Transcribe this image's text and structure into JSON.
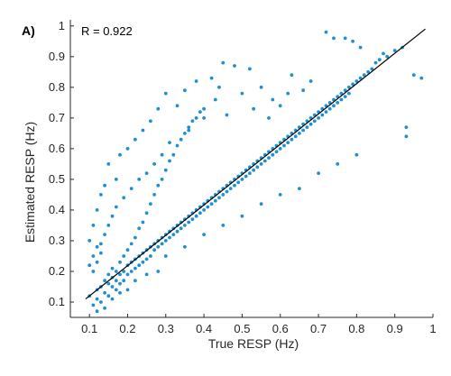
{
  "chart_data": {
    "type": "scatter",
    "panel_label": "A)",
    "annotation": "R = 0.922",
    "xlabel": "True RESP (Hz)",
    "ylabel": "Estimated RESP (Hz)",
    "xlim": [
      0.05,
      1.0
    ],
    "ylim": [
      0.05,
      1.02
    ],
    "x_ticks": [
      "0.1",
      "0.2",
      "0.3",
      "0.4",
      "0.5",
      "0.6",
      "0.7",
      "0.8",
      "0.9",
      "1"
    ],
    "y_ticks": [
      "0.1",
      "0.2",
      "0.3",
      "0.4",
      "0.5",
      "0.6",
      "0.7",
      "0.8",
      "0.9",
      "1"
    ],
    "x_tick_values": [
      0.1,
      0.2,
      0.3,
      0.4,
      0.5,
      0.6,
      0.7,
      0.8,
      0.9,
      1.0
    ],
    "y_tick_values": [
      0.1,
      0.2,
      0.3,
      0.4,
      0.5,
      0.6,
      0.7,
      0.8,
      0.9,
      1.0
    ],
    "grid": false,
    "box": "left-bottom",
    "point_color": "#1f8fd0",
    "line_color": "#000000",
    "fit_line": {
      "x": [
        0.09,
        0.98
      ],
      "y": [
        0.11,
        0.99
      ]
    },
    "points": [
      [
        0.1,
        0.12
      ],
      [
        0.11,
        0.09
      ],
      [
        0.12,
        0.14
      ],
      [
        0.12,
        0.11
      ],
      [
        0.13,
        0.15
      ],
      [
        0.13,
        0.1
      ],
      [
        0.14,
        0.17
      ],
      [
        0.14,
        0.13
      ],
      [
        0.15,
        0.16
      ],
      [
        0.15,
        0.19
      ],
      [
        0.15,
        0.12
      ],
      [
        0.16,
        0.18
      ],
      [
        0.16,
        0.15
      ],
      [
        0.16,
        0.21
      ],
      [
        0.17,
        0.17
      ],
      [
        0.17,
        0.2
      ],
      [
        0.17,
        0.14
      ],
      [
        0.18,
        0.19
      ],
      [
        0.18,
        0.23
      ],
      [
        0.18,
        0.16
      ],
      [
        0.19,
        0.2
      ],
      [
        0.19,
        0.25
      ],
      [
        0.19,
        0.17
      ],
      [
        0.2,
        0.22
      ],
      [
        0.2,
        0.19
      ],
      [
        0.2,
        0.27
      ],
      [
        0.21,
        0.23
      ],
      [
        0.21,
        0.2
      ],
      [
        0.21,
        0.29
      ],
      [
        0.22,
        0.24
      ],
      [
        0.22,
        0.21
      ],
      [
        0.22,
        0.31
      ],
      [
        0.23,
        0.25
      ],
      [
        0.23,
        0.22
      ],
      [
        0.23,
        0.34
      ],
      [
        0.24,
        0.26
      ],
      [
        0.24,
        0.23
      ],
      [
        0.24,
        0.36
      ],
      [
        0.25,
        0.27
      ],
      [
        0.25,
        0.24
      ],
      [
        0.25,
        0.39
      ],
      [
        0.26,
        0.28
      ],
      [
        0.26,
        0.25
      ],
      [
        0.26,
        0.42
      ],
      [
        0.27,
        0.29
      ],
      [
        0.27,
        0.27
      ],
      [
        0.27,
        0.45
      ],
      [
        0.28,
        0.3
      ],
      [
        0.28,
        0.28
      ],
      [
        0.28,
        0.48
      ],
      [
        0.29,
        0.31
      ],
      [
        0.29,
        0.29
      ],
      [
        0.29,
        0.5
      ],
      [
        0.3,
        0.32
      ],
      [
        0.3,
        0.3
      ],
      [
        0.3,
        0.53
      ],
      [
        0.31,
        0.33
      ],
      [
        0.31,
        0.31
      ],
      [
        0.31,
        0.56
      ],
      [
        0.32,
        0.34
      ],
      [
        0.32,
        0.32
      ],
      [
        0.32,
        0.58
      ],
      [
        0.33,
        0.35
      ],
      [
        0.33,
        0.33
      ],
      [
        0.33,
        0.61
      ],
      [
        0.34,
        0.36
      ],
      [
        0.34,
        0.34
      ],
      [
        0.34,
        0.63
      ],
      [
        0.35,
        0.37
      ],
      [
        0.35,
        0.35
      ],
      [
        0.35,
        0.65
      ],
      [
        0.36,
        0.38
      ],
      [
        0.36,
        0.36
      ],
      [
        0.36,
        0.67
      ],
      [
        0.37,
        0.39
      ],
      [
        0.37,
        0.37
      ],
      [
        0.37,
        0.69
      ],
      [
        0.38,
        0.4
      ],
      [
        0.38,
        0.38
      ],
      [
        0.38,
        0.7
      ],
      [
        0.39,
        0.41
      ],
      [
        0.39,
        0.39
      ],
      [
        0.39,
        0.72
      ],
      [
        0.4,
        0.42
      ],
      [
        0.4,
        0.4
      ],
      [
        0.4,
        0.73
      ],
      [
        0.41,
        0.43
      ],
      [
        0.41,
        0.41
      ],
      [
        0.42,
        0.44
      ],
      [
        0.42,
        0.42
      ],
      [
        0.43,
        0.45
      ],
      [
        0.43,
        0.43
      ],
      [
        0.44,
        0.46
      ],
      [
        0.44,
        0.44
      ],
      [
        0.45,
        0.47
      ],
      [
        0.45,
        0.45
      ],
      [
        0.46,
        0.48
      ],
      [
        0.46,
        0.46
      ],
      [
        0.47,
        0.49
      ],
      [
        0.47,
        0.47
      ],
      [
        0.48,
        0.5
      ],
      [
        0.48,
        0.48
      ],
      [
        0.49,
        0.51
      ],
      [
        0.49,
        0.49
      ],
      [
        0.5,
        0.52
      ],
      [
        0.5,
        0.5
      ],
      [
        0.51,
        0.53
      ],
      [
        0.51,
        0.51
      ],
      [
        0.52,
        0.54
      ],
      [
        0.52,
        0.52
      ],
      [
        0.53,
        0.55
      ],
      [
        0.53,
        0.53
      ],
      [
        0.54,
        0.56
      ],
      [
        0.54,
        0.54
      ],
      [
        0.55,
        0.57
      ],
      [
        0.55,
        0.55
      ],
      [
        0.56,
        0.58
      ],
      [
        0.56,
        0.56
      ],
      [
        0.57,
        0.59
      ],
      [
        0.57,
        0.57
      ],
      [
        0.58,
        0.6
      ],
      [
        0.58,
        0.58
      ],
      [
        0.59,
        0.61
      ],
      [
        0.59,
        0.59
      ],
      [
        0.6,
        0.62
      ],
      [
        0.6,
        0.6
      ],
      [
        0.61,
        0.63
      ],
      [
        0.61,
        0.61
      ],
      [
        0.62,
        0.64
      ],
      [
        0.62,
        0.62
      ],
      [
        0.63,
        0.65
      ],
      [
        0.63,
        0.63
      ],
      [
        0.64,
        0.66
      ],
      [
        0.64,
        0.64
      ],
      [
        0.65,
        0.67
      ],
      [
        0.65,
        0.65
      ],
      [
        0.66,
        0.68
      ],
      [
        0.66,
        0.66
      ],
      [
        0.67,
        0.69
      ],
      [
        0.67,
        0.67
      ],
      [
        0.68,
        0.7
      ],
      [
        0.68,
        0.68
      ],
      [
        0.69,
        0.71
      ],
      [
        0.69,
        0.69
      ],
      [
        0.7,
        0.72
      ],
      [
        0.7,
        0.7
      ],
      [
        0.71,
        0.73
      ],
      [
        0.71,
        0.71
      ],
      [
        0.72,
        0.74
      ],
      [
        0.72,
        0.72
      ],
      [
        0.73,
        0.75
      ],
      [
        0.73,
        0.73
      ],
      [
        0.74,
        0.76
      ],
      [
        0.74,
        0.74
      ],
      [
        0.75,
        0.77
      ],
      [
        0.75,
        0.75
      ],
      [
        0.76,
        0.78
      ],
      [
        0.76,
        0.76
      ],
      [
        0.77,
        0.79
      ],
      [
        0.77,
        0.77
      ],
      [
        0.78,
        0.8
      ],
      [
        0.78,
        0.78
      ],
      [
        0.79,
        0.81
      ],
      [
        0.8,
        0.82
      ],
      [
        0.81,
        0.83
      ],
      [
        0.82,
        0.84
      ],
      [
        0.83,
        0.85
      ],
      [
        0.84,
        0.86
      ],
      [
        0.85,
        0.88
      ],
      [
        0.86,
        0.89
      ],
      [
        0.87,
        0.91
      ],
      [
        0.88,
        0.9
      ],
      [
        0.9,
        0.92
      ],
      [
        0.92,
        0.93
      ],
      [
        0.95,
        0.84
      ],
      [
        0.97,
        0.83
      ],
      [
        0.72,
        0.98
      ],
      [
        0.74,
        0.96
      ],
      [
        0.77,
        0.96
      ],
      [
        0.79,
        0.95
      ],
      [
        0.81,
        0.93
      ],
      [
        0.93,
        0.64
      ],
      [
        0.93,
        0.67
      ],
      [
        0.8,
        0.58
      ],
      [
        0.75,
        0.55
      ],
      [
        0.7,
        0.52
      ],
      [
        0.65,
        0.47
      ],
      [
        0.6,
        0.45
      ],
      [
        0.55,
        0.42
      ],
      [
        0.5,
        0.38
      ],
      [
        0.45,
        0.35
      ],
      [
        0.4,
        0.32
      ],
      [
        0.35,
        0.28
      ],
      [
        0.3,
        0.25
      ],
      [
        0.28,
        0.2
      ],
      [
        0.25,
        0.19
      ],
      [
        0.22,
        0.17
      ],
      [
        0.2,
        0.14
      ],
      [
        0.18,
        0.13
      ],
      [
        0.16,
        0.11
      ],
      [
        0.14,
        0.08
      ],
      [
        0.12,
        0.07
      ],
      [
        0.45,
        0.88
      ],
      [
        0.48,
        0.87
      ],
      [
        0.52,
        0.86
      ],
      [
        0.42,
        0.83
      ],
      [
        0.38,
        0.82
      ],
      [
        0.35,
        0.79
      ],
      [
        0.44,
        0.8
      ],
      [
        0.5,
        0.78
      ],
      [
        0.55,
        0.8
      ],
      [
        0.58,
        0.76
      ],
      [
        0.62,
        0.78
      ],
      [
        0.3,
        0.78
      ],
      [
        0.33,
        0.74
      ],
      [
        0.28,
        0.73
      ],
      [
        0.26,
        0.69
      ],
      [
        0.24,
        0.66
      ],
      [
        0.22,
        0.63
      ],
      [
        0.2,
        0.6
      ],
      [
        0.18,
        0.58
      ],
      [
        0.15,
        0.55
      ],
      [
        0.17,
        0.5
      ],
      [
        0.14,
        0.48
      ],
      [
        0.13,
        0.45
      ],
      [
        0.12,
        0.4
      ],
      [
        0.11,
        0.35
      ],
      [
        0.1,
        0.3
      ],
      [
        0.12,
        0.28
      ],
      [
        0.11,
        0.25
      ],
      [
        0.1,
        0.22
      ],
      [
        0.43,
        0.76
      ],
      [
        0.46,
        0.71
      ],
      [
        0.53,
        0.73
      ],
      [
        0.57,
        0.7
      ],
      [
        0.6,
        0.74
      ],
      [
        0.66,
        0.79
      ],
      [
        0.68,
        0.82
      ],
      [
        0.63,
        0.84
      ],
      [
        0.4,
        0.7
      ],
      [
        0.36,
        0.66
      ],
      [
        0.31,
        0.62
      ],
      [
        0.29,
        0.58
      ],
      [
        0.27,
        0.55
      ],
      [
        0.25,
        0.52
      ],
      [
        0.23,
        0.5
      ],
      [
        0.21,
        0.47
      ],
      [
        0.19,
        0.44
      ],
      [
        0.17,
        0.41
      ],
      [
        0.16,
        0.38
      ],
      [
        0.15,
        0.35
      ],
      [
        0.14,
        0.32
      ],
      [
        0.13,
        0.29
      ],
      [
        0.13,
        0.26
      ],
      [
        0.12,
        0.23
      ],
      [
        0.11,
        0.2
      ]
    ]
  }
}
